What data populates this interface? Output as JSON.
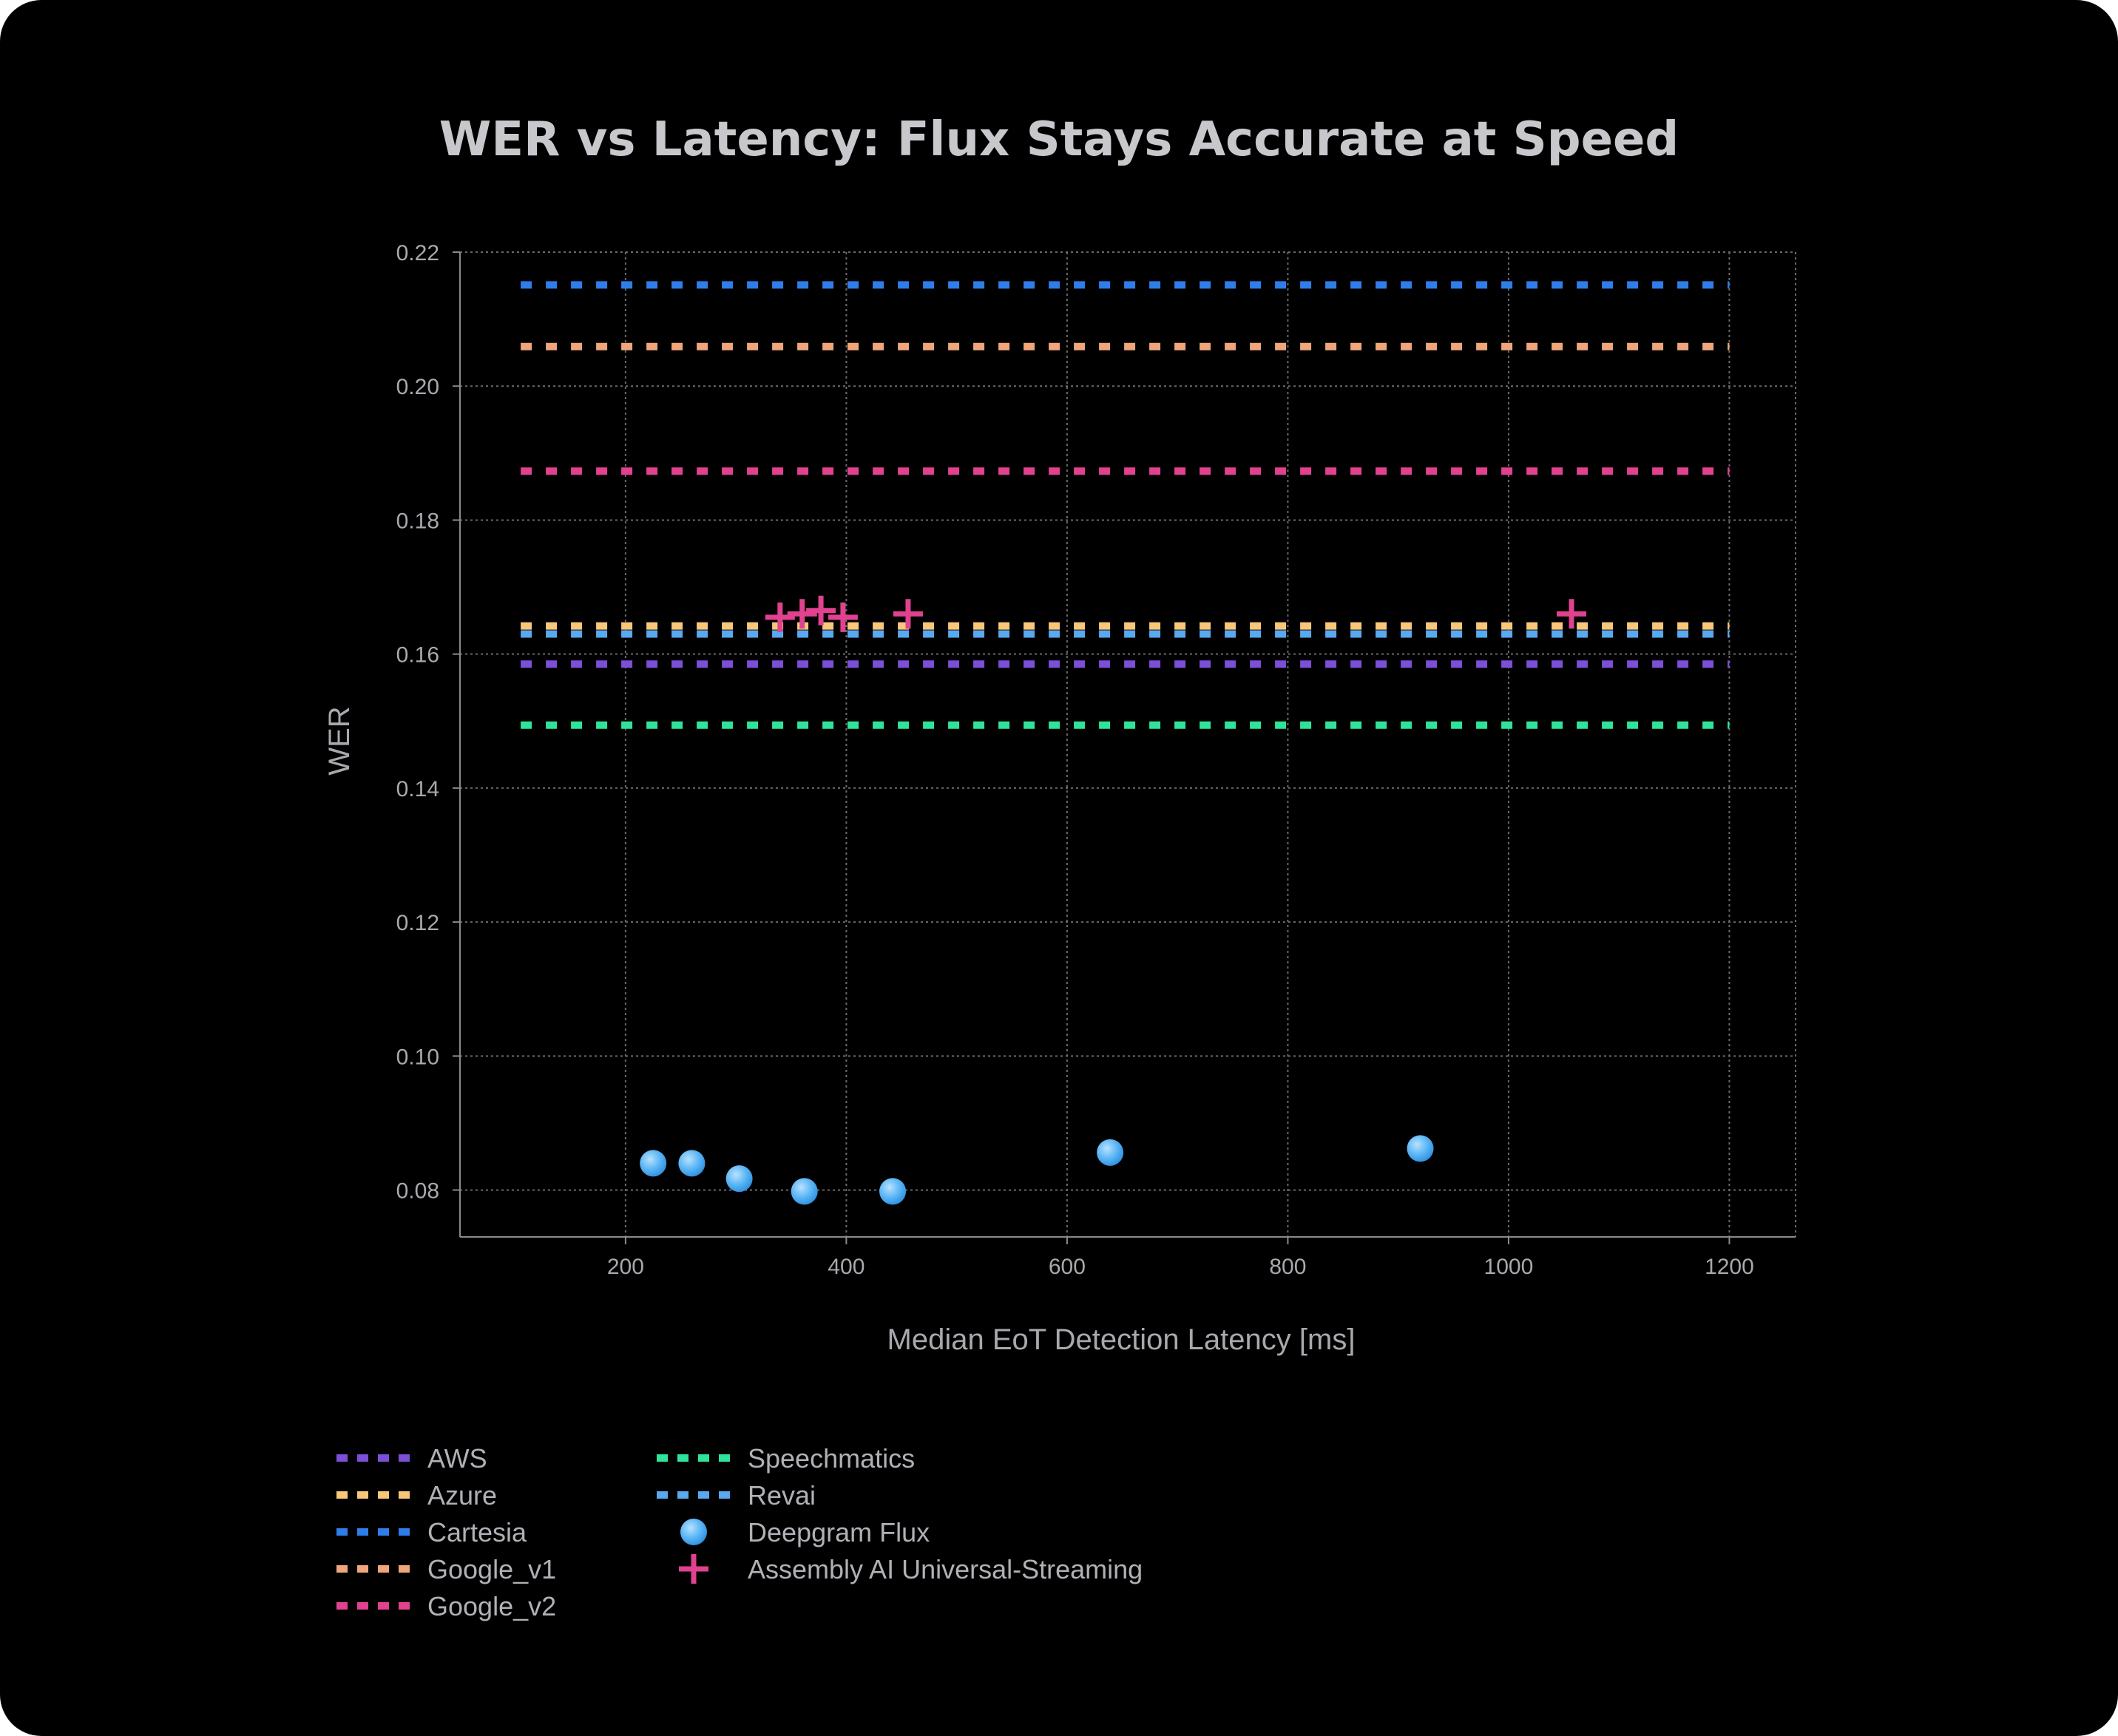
{
  "chart_data": {
    "type": "scatter",
    "title": "WER vs Latency: Flux Stays Accurate at Speed",
    "xlabel": "Median EoT Detection Latency [ms]",
    "ylabel": "WER",
    "xlim": [
      50,
      1260
    ],
    "ylim": [
      0.073,
      0.22
    ],
    "xticks": [
      200,
      400,
      600,
      800,
      1000,
      1200
    ],
    "yticks": [
      0.08,
      0.1,
      0.12,
      0.14,
      0.16,
      0.18,
      0.2,
      0.22
    ],
    "grid": true,
    "legend_position": "bottom-left",
    "reference_lines": {
      "x_range": [
        105,
        1200
      ],
      "lines": [
        {
          "name": "AWS",
          "y": 0.1585,
          "color": "#7b4fd6"
        },
        {
          "name": "Azure",
          "y": 0.1642,
          "color": "#f8c77a"
        },
        {
          "name": "Cartesia",
          "y": 0.2151,
          "color": "#2f7de8"
        },
        {
          "name": "Google_v1",
          "y": 0.2059,
          "color": "#f0a57a"
        },
        {
          "name": "Google_v2",
          "y": 0.1873,
          "color": "#e0428f"
        },
        {
          "name": "Speechmatics",
          "y": 0.1494,
          "color": "#2fe39a"
        },
        {
          "name": "Revai",
          "y": 0.163,
          "color": "#5aa8ee"
        }
      ]
    },
    "series": [
      {
        "name": "Deepgram Flux",
        "marker": "circle",
        "color": "#3aa4f0",
        "points": [
          {
            "x": 225,
            "y": 0.084
          },
          {
            "x": 260,
            "y": 0.084
          },
          {
            "x": 303,
            "y": 0.0817
          },
          {
            "x": 362,
            "y": 0.0798
          },
          {
            "x": 442,
            "y": 0.0798
          },
          {
            "x": 639,
            "y": 0.0856
          },
          {
            "x": 920,
            "y": 0.0862
          }
        ]
      },
      {
        "name": "Assembly AI Universal-Streaming",
        "marker": "plus",
        "color": "#e0428f",
        "points": [
          {
            "x": 340,
            "y": 0.1655
          },
          {
            "x": 360,
            "y": 0.166
          },
          {
            "x": 377,
            "y": 0.1665
          },
          {
            "x": 397,
            "y": 0.1655
          },
          {
            "x": 456,
            "y": 0.166
          },
          {
            "x": 1057,
            "y": 0.166
          }
        ]
      }
    ],
    "legend": {
      "column_1": [
        {
          "label": "AWS",
          "marker": "dashed-line",
          "color": "#7b4fd6"
        },
        {
          "label": "Azure",
          "marker": "dashed-line",
          "color": "#f8c77a"
        },
        {
          "label": "Cartesia",
          "marker": "dashed-line",
          "color": "#2f7de8"
        },
        {
          "label": "Google_v1",
          "marker": "dashed-line",
          "color": "#f0a57a"
        },
        {
          "label": "Google_v2",
          "marker": "dashed-line",
          "color": "#e0428f"
        }
      ],
      "column_2": [
        {
          "label": "Speechmatics",
          "marker": "dashed-line",
          "color": "#2fe39a"
        },
        {
          "label": "Revai",
          "marker": "dashed-line",
          "color": "#5aa8ee"
        },
        {
          "label": "Deepgram Flux",
          "marker": "circle",
          "color": "#3aa4f0"
        },
        {
          "label": "Assembly AI Universal-Streaming",
          "marker": "plus",
          "color": "#e0428f"
        }
      ]
    }
  }
}
